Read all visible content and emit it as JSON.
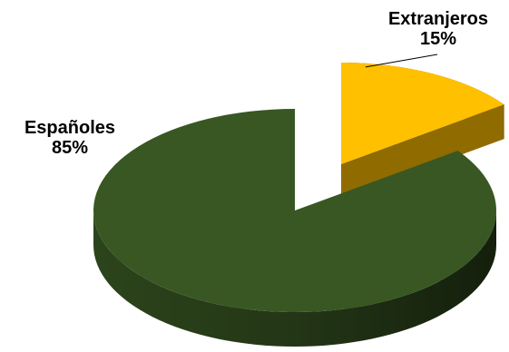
{
  "chart_data": {
    "type": "pie",
    "style": "3d-exploded",
    "title": "",
    "slices": [
      {
        "name": "Españoles",
        "value": 85,
        "value_label": "85%",
        "color": "#385723",
        "side_color": "#26391a"
      },
      {
        "name": "Extranjeros",
        "value": 15,
        "value_label": "15%",
        "color": "#ffc000",
        "side_color": "#9a7600"
      }
    ],
    "legend": "none"
  }
}
